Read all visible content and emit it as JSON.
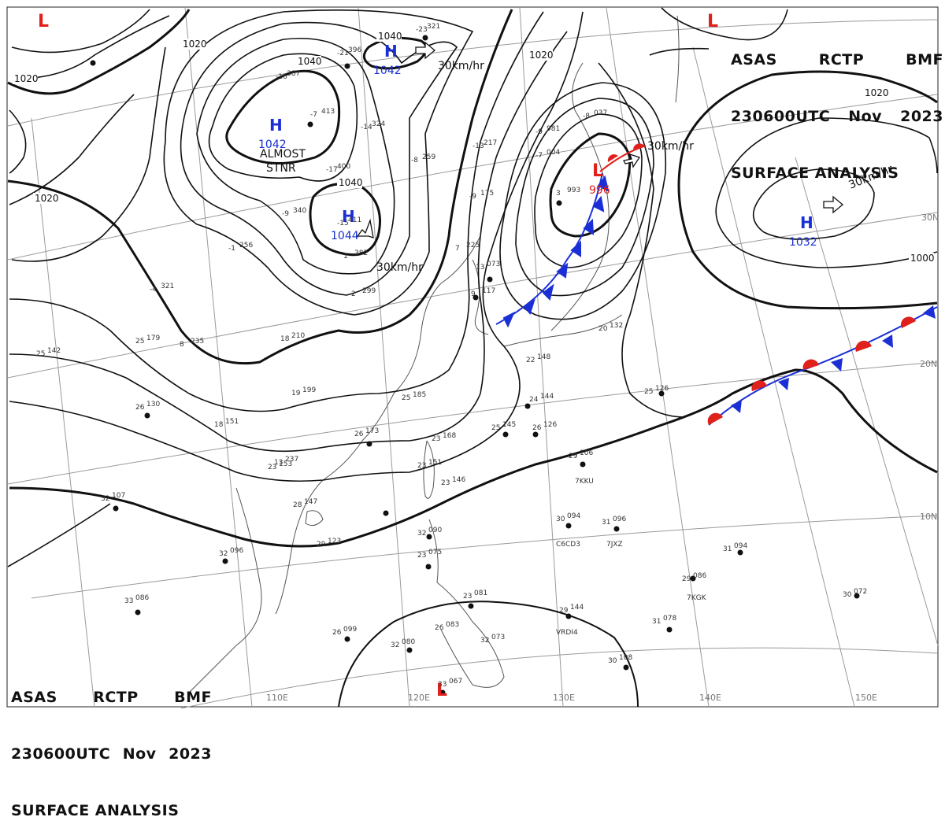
{
  "header": {
    "agency": "ASAS",
    "station": "RCTP",
    "code": "BMF",
    "time": "230600UTC",
    "month": "Nov",
    "year": "2023",
    "title": "SURFACE ANALYSIS"
  },
  "colors": {
    "isobar": "#111111",
    "high": "#1a2fd6",
    "low": "#e0201b",
    "cold_front": "#1a2fd6",
    "warm_front": "#e0201b",
    "graticule": "#9a9a9a",
    "coast": "#555555"
  },
  "lat_labels": [
    "30N",
    "20N",
    "10N"
  ],
  "lon_labels": [
    "110E",
    "120E",
    "130E",
    "140E",
    "150E"
  ],
  "isobar_labels": [
    "1040",
    "1040",
    "1040",
    "1020",
    "1020",
    "1020",
    "1020",
    "1020",
    "1000"
  ],
  "systems": [
    {
      "type": "H",
      "pressure": "1042"
    },
    {
      "type": "H",
      "pressure": "1042"
    },
    {
      "type": "H",
      "pressure": "1044"
    },
    {
      "type": "H",
      "pressure": "1032"
    },
    {
      "type": "L",
      "pressure": "996"
    },
    {
      "type": "L",
      "pressure": ""
    },
    {
      "type": "L",
      "pressure": ""
    },
    {
      "type": "L",
      "pressure": ""
    }
  ],
  "motion_labels": [
    "30km/hr",
    "30km/hr",
    "30km/hr",
    "30km/hr"
  ],
  "annotation": "ALMOST\nSTNR",
  "ships": [
    "7KKU",
    "C6CD3",
    "7JXZ",
    "7KGK",
    "VRDI4"
  ],
  "stations": [
    {
      "t": "25",
      "p": "142"
    },
    {
      "t": "26",
      "p": "130"
    },
    {
      "t": "32",
      "p": "107"
    },
    {
      "t": "32",
      "p": "096"
    },
    {
      "t": "33",
      "p": "086"
    },
    {
      "t": "26",
      "p": "099"
    },
    {
      "t": "32",
      "p": "080"
    },
    {
      "t": "33",
      "p": "067"
    },
    {
      "t": "26",
      "p": "173"
    },
    {
      "t": "23",
      "p": "168"
    },
    {
      "t": "25",
      "p": "145"
    },
    {
      "t": "24",
      "p": "144"
    },
    {
      "t": "26",
      "p": "126"
    },
    {
      "t": "29",
      "p": "106"
    },
    {
      "t": "30",
      "p": "094"
    },
    {
      "t": "31",
      "p": "096"
    },
    {
      "t": "31",
      "p": "094"
    },
    {
      "t": "29",
      "p": "086"
    },
    {
      "t": "30",
      "p": "072"
    },
    {
      "t": "29",
      "p": "144"
    },
    {
      "t": "31",
      "p": "078"
    },
    {
      "t": "30",
      "p": "108"
    },
    {
      "t": "25",
      "p": "126"
    },
    {
      "t": "20",
      "p": "132"
    },
    {
      "t": "18",
      "p": "210"
    },
    {
      "t": "19",
      "p": "199"
    },
    {
      "t": "8",
      "p": "235"
    },
    {
      "t": "-4",
      "p": "321"
    },
    {
      "t": "-1",
      "p": "256"
    },
    {
      "t": "2",
      "p": "299"
    },
    {
      "t": "1",
      "p": "382"
    },
    {
      "t": "-16",
      "p": "387"
    },
    {
      "t": "-7",
      "p": "413"
    },
    {
      "t": "-17",
      "p": "400"
    },
    {
      "t": "-14",
      "p": "324"
    },
    {
      "t": "-23",
      "p": "321"
    },
    {
      "t": "-21",
      "p": "396"
    },
    {
      "t": "-9",
      "p": "340"
    },
    {
      "t": "-15",
      "p": "411"
    },
    {
      "t": "-8",
      "p": "259"
    },
    {
      "t": "-9",
      "p": "175"
    },
    {
      "t": "-13",
      "p": "217"
    },
    {
      "t": "-7",
      "p": "004"
    },
    {
      "t": "-9",
      "p": "981"
    },
    {
      "t": "-8",
      "p": "037"
    },
    {
      "t": "3",
      "p": "993"
    },
    {
      "t": "13",
      "p": "073"
    },
    {
      "t": "9",
      "p": "117"
    },
    {
      "t": "7",
      "p": "225"
    },
    {
      "t": "23",
      "p": "151"
    },
    {
      "t": "23",
      "p": "146"
    },
    {
      "t": "28",
      "p": "147"
    },
    {
      "t": "29",
      "p": "123"
    },
    {
      "t": "32",
      "p": "090"
    },
    {
      "t": "23",
      "p": "075"
    },
    {
      "t": "23",
      "p": "081"
    },
    {
      "t": "26",
      "p": "083"
    },
    {
      "t": "32",
      "p": "073"
    },
    {
      "t": "22",
      "p": "148"
    },
    {
      "t": "23",
      "p": "153"
    },
    {
      "t": "25",
      "p": "185"
    },
    {
      "t": "18",
      "p": "151"
    },
    {
      "t": "13",
      "p": "237"
    },
    {
      "t": "25",
      "p": "179"
    }
  ]
}
